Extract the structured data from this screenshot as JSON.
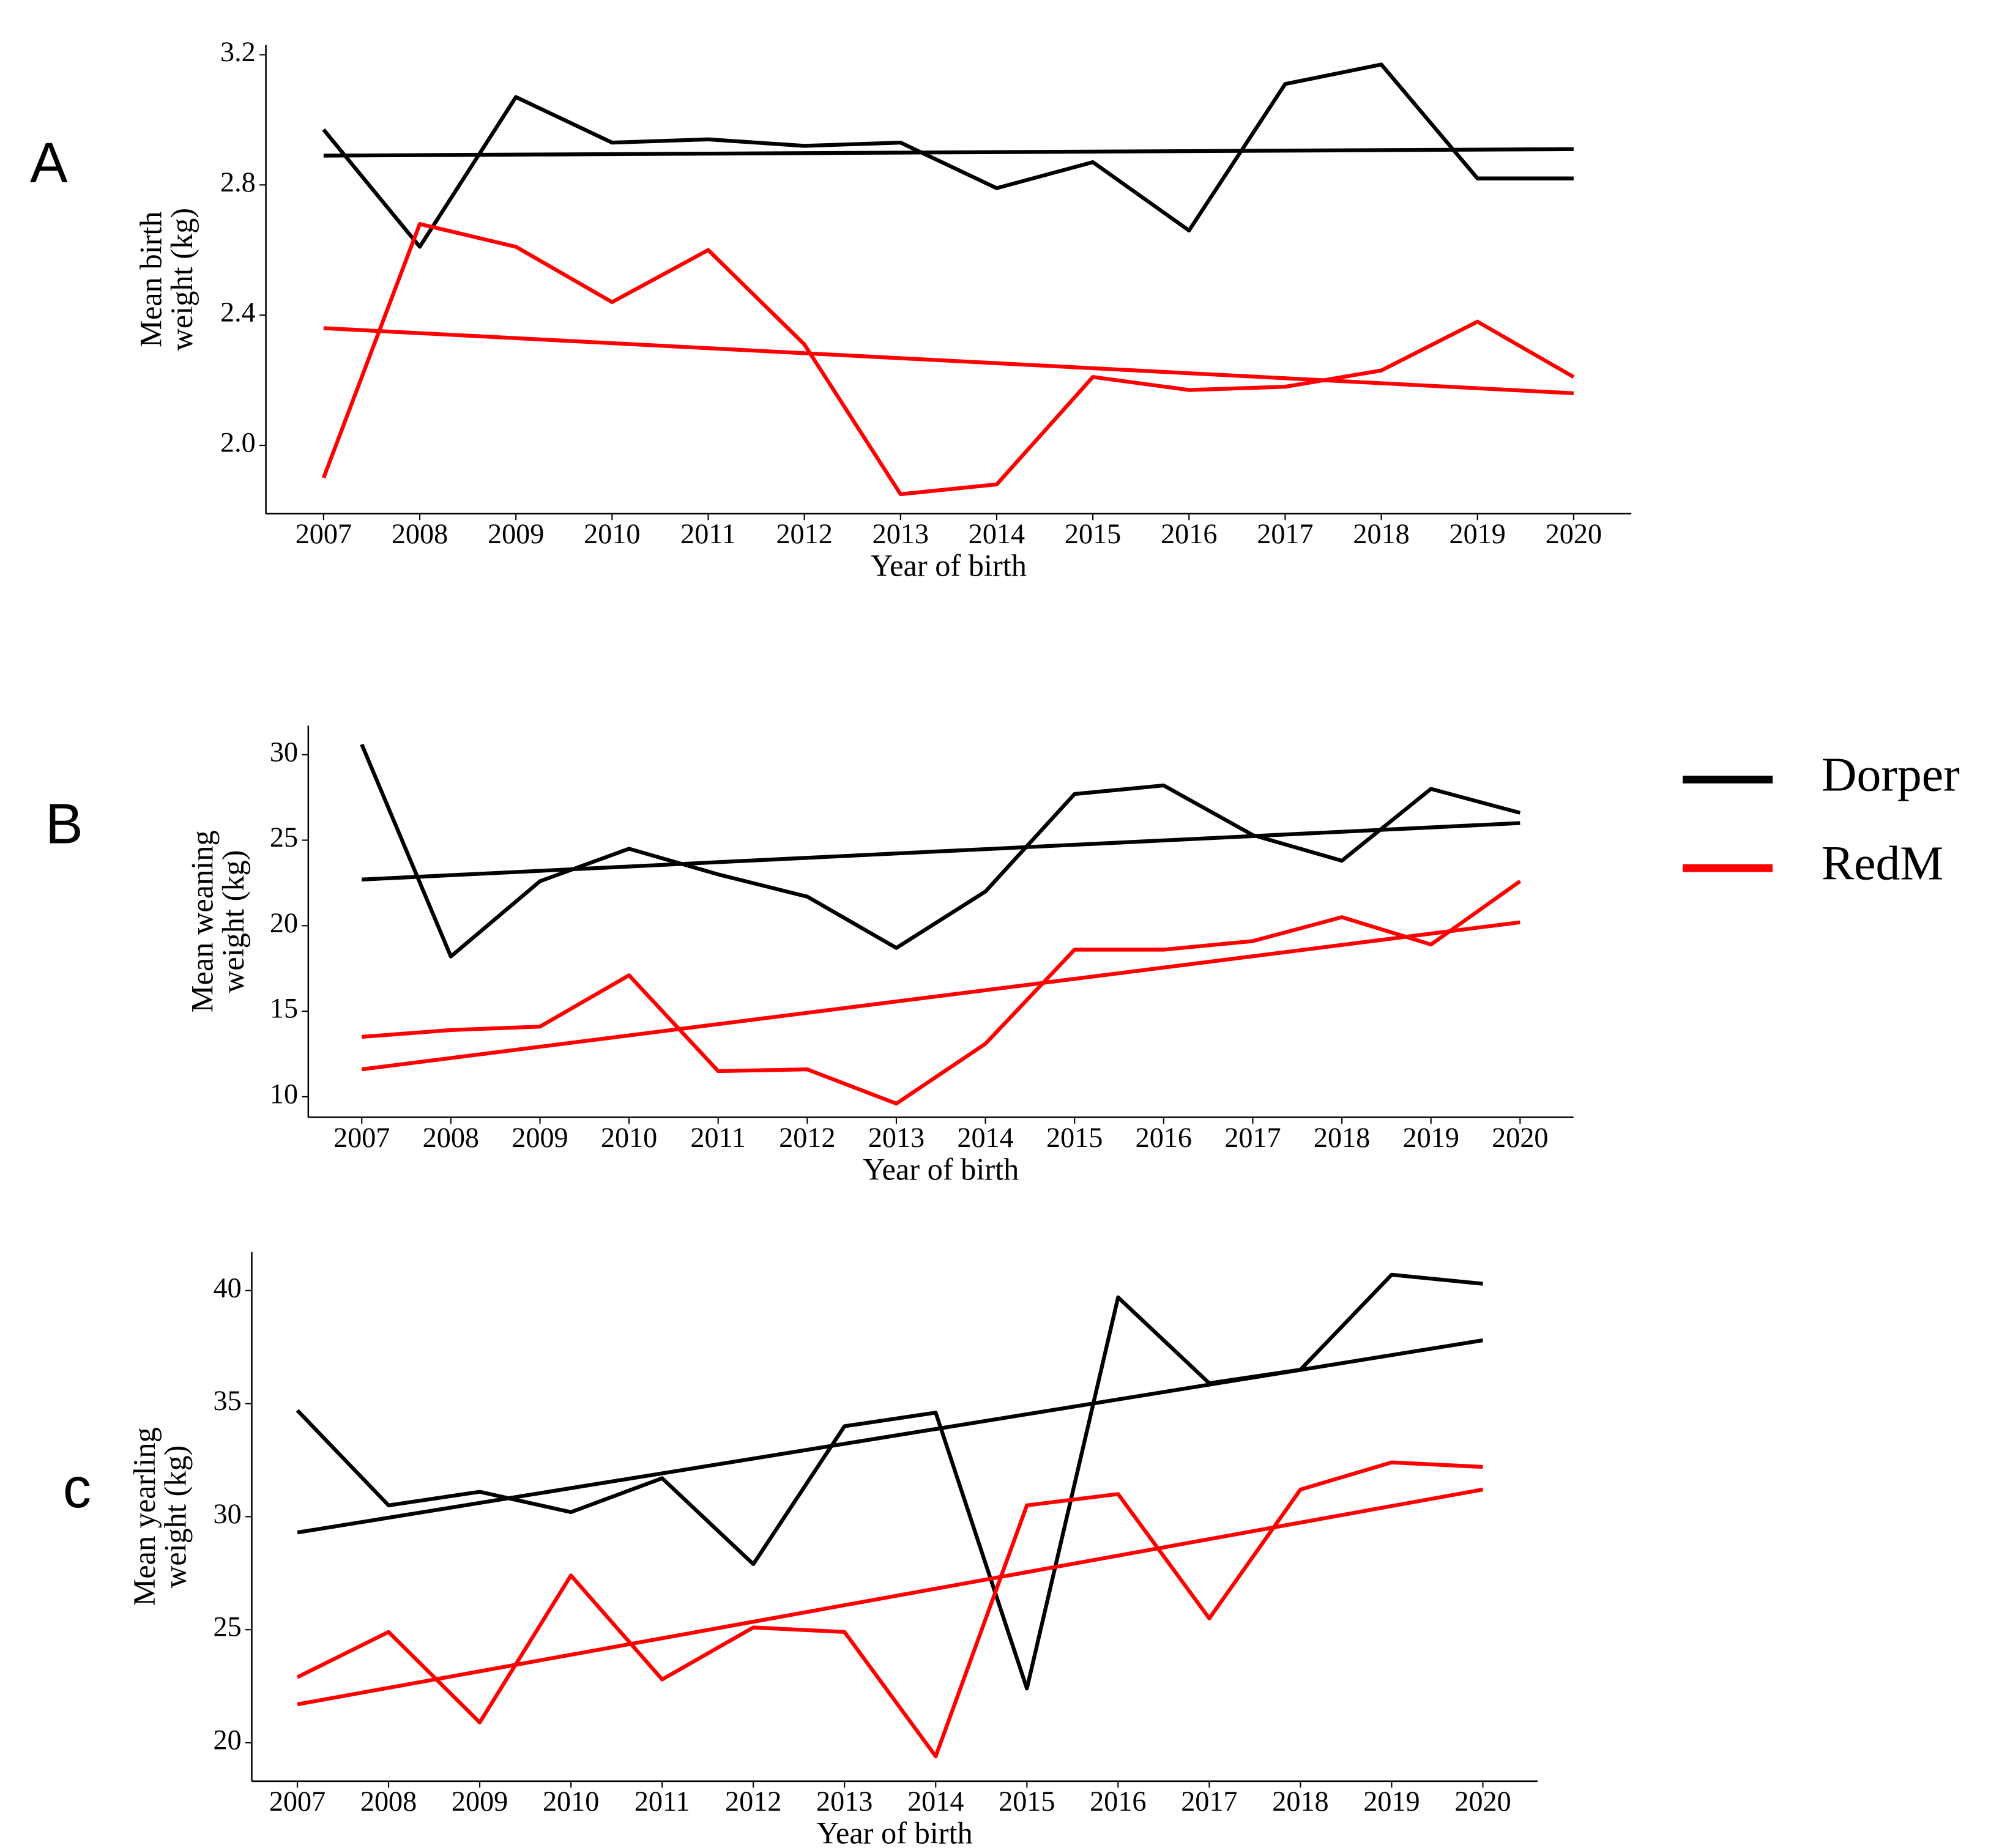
{
  "chart_data": [
    {
      "type": "line",
      "label": "A",
      "ylabel": [
        "Mean birth",
        "weight (kg)"
      ],
      "xlabel": "Year of birth",
      "x": [
        2007,
        2008,
        2009,
        2010,
        2011,
        2012,
        2013,
        2014,
        2015,
        2016,
        2017,
        2018,
        2019,
        2020
      ],
      "xticks": [
        2007,
        2008,
        2009,
        2010,
        2011,
        2012,
        2013,
        2014,
        2015,
        2016,
        2017,
        2018,
        2019,
        2020
      ],
      "xlim": [
        2006.4,
        2020.6
      ],
      "ylim": [
        1.79,
        3.23
      ],
      "yticks": [
        {
          "value": 2,
          "label": "2.0"
        },
        2.4,
        2.8,
        3.2
      ],
      "series": [
        {
          "name": "Dorper",
          "color": "#000000",
          "values": [
            2.97,
            2.61,
            3.07,
            2.93,
            2.94,
            2.92,
            2.93,
            2.79,
            2.87,
            2.66,
            3.11,
            3.17,
            2.82,
            2.82
          ],
          "trend": [
            2.89,
            2.91
          ]
        },
        {
          "name": "RedM",
          "color": "#ff0000",
          "values": [
            1.9,
            2.68,
            2.61,
            2.44,
            2.6,
            2.31,
            1.85,
            1.88,
            2.21,
            2.17,
            2.18,
            2.23,
            2.38,
            2.21
          ],
          "trend": [
            2.36,
            2.16
          ]
        }
      ]
    },
    {
      "type": "line",
      "label": "B",
      "ylabel": [
        "Mean weaning",
        "weight (kg)"
      ],
      "xlabel": "Year of birth",
      "x": [
        2007,
        2008,
        2009,
        2010,
        2011,
        2012,
        2013,
        2014,
        2015,
        2016,
        2017,
        2018,
        2019,
        2020
      ],
      "xticks": [
        2007,
        2008,
        2009,
        2010,
        2011,
        2012,
        2013,
        2014,
        2015,
        2016,
        2017,
        2018,
        2019,
        2020
      ],
      "xlim": [
        2006.4,
        2020.6
      ],
      "ylim": [
        8.8,
        31.7
      ],
      "yticks": [
        10,
        15,
        20,
        25,
        30
      ],
      "series": [
        {
          "name": "Dorper",
          "color": "#000000",
          "values": [
            30.6,
            18.2,
            22.6,
            24.5,
            23.0,
            21.7,
            18.7,
            22.0,
            27.7,
            28.2,
            25.3,
            23.8,
            28.0,
            26.6
          ],
          "trend": [
            22.7,
            26.0
          ]
        },
        {
          "name": "RedM",
          "color": "#ff0000",
          "values": [
            13.5,
            13.9,
            14.1,
            17.1,
            11.5,
            11.6,
            9.6,
            13.1,
            18.6,
            18.6,
            19.1,
            20.5,
            18.9,
            22.6
          ],
          "trend": [
            11.6,
            20.2
          ]
        }
      ]
    },
    {
      "type": "line",
      "label": "c",
      "ylabel": [
        "Mean yearling",
        "weight (kg)"
      ],
      "xlabel": "Year of birth",
      "x": [
        2007,
        2008,
        2009,
        2010,
        2011,
        2012,
        2013,
        2014,
        2015,
        2016,
        2017,
        2018,
        2019,
        2020
      ],
      "xticks": [
        2007,
        2008,
        2009,
        2010,
        2011,
        2012,
        2013,
        2014,
        2015,
        2016,
        2017,
        2018,
        2019,
        2020
      ],
      "xlim": [
        2006.5,
        2020.6
      ],
      "ylim": [
        18.3,
        41.7
      ],
      "yticks": [
        20,
        25,
        30,
        35,
        40
      ],
      "series": [
        {
          "name": "Dorper",
          "color": "#000000",
          "values": [
            34.7,
            30.5,
            31.1,
            30.2,
            31.7,
            27.9,
            34.0,
            34.6,
            22.4,
            39.7,
            35.9,
            36.5,
            40.7,
            40.3
          ],
          "trend": [
            29.3,
            37.8
          ]
        },
        {
          "name": "RedM",
          "color": "#ff0000",
          "values": [
            22.9,
            24.9,
            20.9,
            27.4,
            22.8,
            25.1,
            24.9,
            19.4,
            30.5,
            31.0,
            25.5,
            31.2,
            32.4,
            32.2
          ],
          "trend": [
            21.7,
            31.2
          ]
        }
      ]
    }
  ]
}
